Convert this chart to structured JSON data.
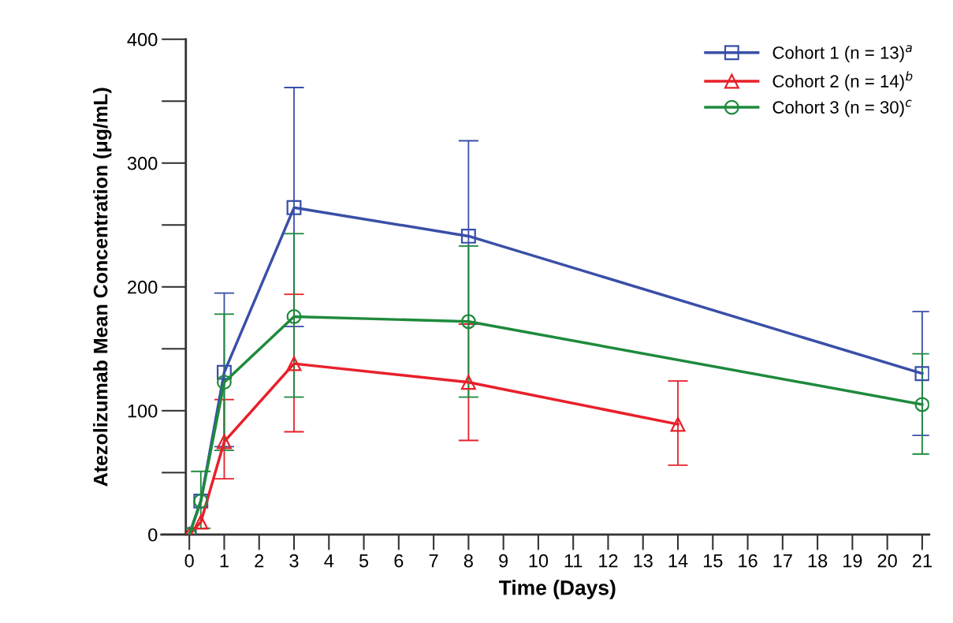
{
  "chart_data": {
    "type": "line",
    "xlabel": "Time (Days)",
    "ylabel": "Atezolizumab Mean Concentration (μg/mL)",
    "xlim": [
      0,
      21
    ],
    "xticks": [
      0,
      1,
      2,
      3,
      4,
      5,
      6,
      7,
      8,
      9,
      10,
      11,
      12,
      13,
      14,
      15,
      16,
      17,
      18,
      19,
      20,
      21
    ],
    "ylim": [
      0,
      400
    ],
    "yticks": [
      0,
      100,
      200,
      300,
      400
    ],
    "grid": false,
    "legend": "top right",
    "line_style": "solid",
    "series": [
      {
        "name": "Cohort 1 (n = 13)$^{a}$",
        "color": "#3a4fa8",
        "marker": "square",
        "x": [
          0,
          0.33,
          1,
          3,
          8,
          21
        ],
        "values": [
          0,
          27,
          131,
          264,
          241,
          130
        ],
        "errors": [
          null,
          null,
          [
            71,
            195
          ],
          [
            168,
            361
          ],
          [
            170,
            318
          ],
          [
            80,
            180
          ]
        ]
      },
      {
        "name": "Cohort 2 (n = 14)$^{b}$",
        "color": "#e8202a",
        "marker": "triangle",
        "x": [
          0,
          0.33,
          1,
          3,
          8,
          14
        ],
        "values": [
          0,
          10,
          75,
          138,
          123,
          89
        ],
        "errors": [
          null,
          null,
          [
            45,
            109
          ],
          [
            83,
            194
          ],
          [
            76,
            170
          ],
          [
            56,
            124
          ]
        ]
      },
      {
        "name": "Cohort 3 (n = 30)$^{c}$",
        "color": "#1e8a3c",
        "marker": "circle",
        "x": [
          0,
          0.33,
          1,
          3,
          8,
          21
        ],
        "values": [
          0,
          27,
          123,
          176,
          172,
          105
        ],
        "errors": [
          null,
          [
            5,
            51
          ],
          [
            68,
            178
          ],
          [
            111,
            243
          ],
          [
            111,
            233
          ],
          [
            65,
            146
          ]
        ]
      }
    ]
  }
}
